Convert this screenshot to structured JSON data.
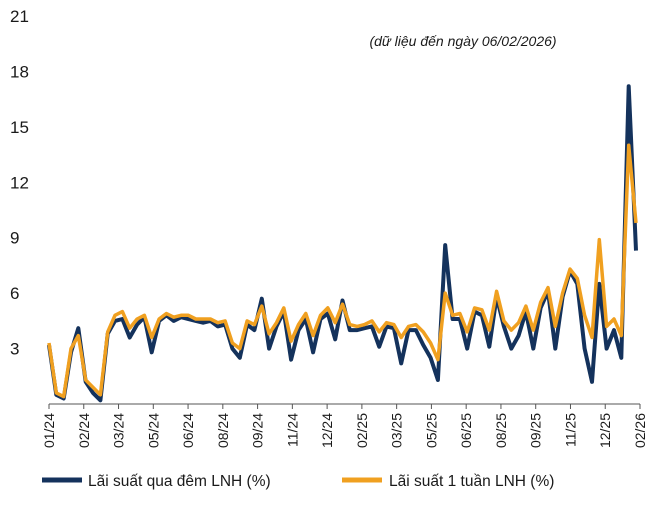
{
  "chart_data": {
    "type": "line",
    "title": "",
    "annotation": "(dữ liệu đến ngày 06/02/2026)",
    "xlabel": "",
    "ylabel": "",
    "ylim": [
      0,
      21
    ],
    "y_ticks": [
      "21",
      "18",
      "15",
      "12",
      "9",
      "6",
      "3"
    ],
    "x_ticks": [
      "01/24",
      "02/24",
      "03/24",
      "05/24",
      "06/24",
      "08/24",
      "09/24",
      "11/24",
      "12/24",
      "02/25",
      "03/25",
      "05/25",
      "06/25",
      "08/25",
      "09/25",
      "11/25",
      "12/25",
      "02/26"
    ],
    "grid": false,
    "legend_position": "bottom",
    "series": [
      {
        "name": "Lãi suất qua đêm LNH (%)",
        "color": "#14325c",
        "x": [
          "01/24",
          "01/24",
          "02/24",
          "02/24",
          "02/24",
          "02/24",
          "03/24",
          "03/24",
          "03/24",
          "03/24",
          "04/24",
          "04/24",
          "04/24",
          "05/24",
          "05/24",
          "05/24",
          "06/24",
          "06/24",
          "06/24",
          "07/24",
          "07/24",
          "07/24",
          "08/24",
          "08/24",
          "08/24",
          "09/24",
          "09/24",
          "09/24",
          "10/24",
          "10/24",
          "10/24",
          "11/24",
          "11/24",
          "11/24",
          "12/24",
          "12/24",
          "12/24",
          "01/25",
          "01/25",
          "01/25",
          "02/25",
          "02/25",
          "02/25",
          "03/25",
          "03/25",
          "03/25",
          "04/25",
          "04/25",
          "04/25",
          "05/25",
          "05/25",
          "05/25",
          "06/25",
          "06/25",
          "06/25",
          "06/25",
          "07/25",
          "07/25",
          "07/25",
          "08/25",
          "08/25",
          "08/25",
          "09/25",
          "09/25",
          "09/25",
          "10/25",
          "10/25",
          "10/25",
          "11/25",
          "11/25",
          "11/25",
          "12/25",
          "12/25",
          "12/25",
          "12/25",
          "01/26",
          "01/26",
          "01/26",
          "01/26",
          "02/26",
          "02/26"
        ],
        "values": [
          3.2,
          0.5,
          0.3,
          2.8,
          4.1,
          1.2,
          0.6,
          0.2,
          3.8,
          4.5,
          4.6,
          3.6,
          4.3,
          4.7,
          2.8,
          4.5,
          4.8,
          4.5,
          4.7,
          4.6,
          4.5,
          4.4,
          4.5,
          4.2,
          4.3,
          3.0,
          2.5,
          4.3,
          4.0,
          5.7,
          3.0,
          4.2,
          5.0,
          2.4,
          4.0,
          4.6,
          2.8,
          4.6,
          4.9,
          3.5,
          5.6,
          4.0,
          4.0,
          4.1,
          4.2,
          3.1,
          4.2,
          4.1,
          2.2,
          4.0,
          4.0,
          3.2,
          2.5,
          1.3,
          8.6,
          4.6,
          4.6,
          3.0,
          5.0,
          4.8,
          3.1,
          5.8,
          4.2,
          3.0,
          3.7,
          5.0,
          3.0,
          5.2,
          6.1,
          3.0,
          5.8,
          7.2,
          6.5,
          3.0,
          1.2,
          6.5,
          3.0,
          4.0,
          2.5,
          17.2,
          8.3
        ]
      },
      {
        "name": "Lãi suất 1 tuần LNH (%)",
        "color": "#f0a020",
        "x": [
          "01/24",
          "01/24",
          "02/24",
          "02/24",
          "02/24",
          "02/24",
          "03/24",
          "03/24",
          "03/24",
          "03/24",
          "04/24",
          "04/24",
          "04/24",
          "05/24",
          "05/24",
          "05/24",
          "06/24",
          "06/24",
          "06/24",
          "07/24",
          "07/24",
          "07/24",
          "08/24",
          "08/24",
          "08/24",
          "09/24",
          "09/24",
          "09/24",
          "10/24",
          "10/24",
          "10/24",
          "11/24",
          "11/24",
          "11/24",
          "12/24",
          "12/24",
          "12/24",
          "01/25",
          "01/25",
          "01/25",
          "02/25",
          "02/25",
          "02/25",
          "03/25",
          "03/25",
          "03/25",
          "04/25",
          "04/25",
          "04/25",
          "05/25",
          "05/25",
          "05/25",
          "06/25",
          "06/25",
          "06/25",
          "06/25",
          "07/25",
          "07/25",
          "07/25",
          "08/25",
          "08/25",
          "08/25",
          "09/25",
          "09/25",
          "09/25",
          "10/25",
          "10/25",
          "10/25",
          "11/25",
          "11/25",
          "11/25",
          "12/25",
          "12/25",
          "12/25",
          "12/25",
          "01/26",
          "01/26",
          "01/26",
          "01/26",
          "02/26",
          "02/26"
        ],
        "values": [
          3.3,
          0.6,
          0.4,
          3.0,
          3.7,
          1.3,
          0.9,
          0.5,
          3.9,
          4.8,
          5.0,
          4.1,
          4.6,
          4.8,
          3.6,
          4.6,
          4.9,
          4.7,
          4.8,
          4.8,
          4.6,
          4.6,
          4.6,
          4.4,
          4.5,
          3.3,
          3.0,
          4.5,
          4.3,
          5.3,
          3.8,
          4.4,
          5.2,
          3.4,
          4.3,
          4.9,
          3.7,
          4.8,
          5.2,
          4.4,
          5.4,
          4.3,
          4.2,
          4.3,
          4.5,
          3.9,
          4.4,
          4.3,
          3.6,
          4.2,
          4.3,
          3.9,
          3.3,
          2.4,
          6.0,
          4.8,
          4.9,
          3.9,
          5.2,
          5.1,
          4.0,
          6.1,
          4.5,
          4.0,
          4.4,
          5.3,
          4.0,
          5.5,
          6.3,
          4.2,
          6.0,
          7.3,
          6.8,
          4.8,
          3.6,
          8.9,
          4.2,
          4.6,
          3.7,
          14.0,
          9.8
        ]
      }
    ]
  }
}
